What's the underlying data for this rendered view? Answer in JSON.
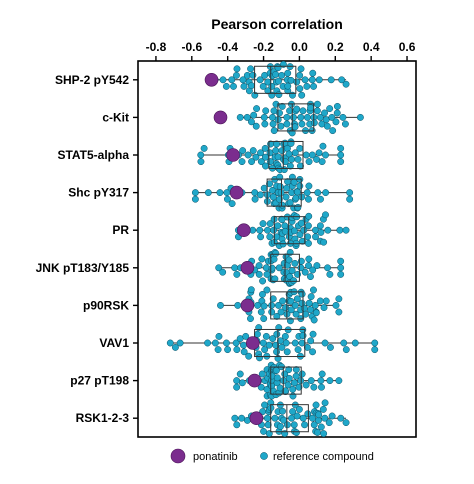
{
  "chart_data": {
    "type": "scatter",
    "subtype": "beeswarm-with-boxplot",
    "title": "",
    "xlabel": "Pearson correlation",
    "xlabel_position": "top",
    "xlim": [
      -0.9,
      0.65
    ],
    "xticks": [
      -0.8,
      -0.6,
      -0.4,
      -0.2,
      0.0,
      0.2,
      0.4,
      0.6
    ],
    "xtick_labels": [
      "-0.8",
      "-0.6",
      "-0.4",
      "-0.2",
      "0.0",
      "0.2",
      "0.4",
      "0.6"
    ],
    "grid": false,
    "legend_position": "bottom",
    "categories": [
      "SHP-2 pY542",
      "c-Kit",
      "STAT5-alpha",
      "Shc pY317",
      "PR",
      "JNK pT183/Y185",
      "p90RSK",
      "VAV1",
      "p27 pT198",
      "RSK1-2-3"
    ],
    "series": [
      {
        "name": "ponatinib",
        "color": "#7b2d8e",
        "values": [
          -0.49,
          -0.44,
          -0.37,
          -0.35,
          -0.31,
          -0.29,
          -0.29,
          -0.26,
          -0.25,
          -0.24
        ]
      },
      {
        "name": "reference compound",
        "color": "#1fa7c9",
        "summary": "box plot over 58 reference compounds per row",
        "boxes": [
          {
            "whisker_low": -0.47,
            "q1": -0.25,
            "median": -0.16,
            "q3": -0.02,
            "whisker_high": 0.26
          },
          {
            "whisker_low": -0.33,
            "q1": -0.12,
            "median": -0.04,
            "q3": 0.08,
            "whisker_high": 0.34
          },
          {
            "whisker_low": -0.55,
            "q1": -0.17,
            "median": -0.09,
            "q3": 0.02,
            "whisker_high": 0.23
          },
          {
            "whisker_low": -0.58,
            "q1": -0.18,
            "median": -0.1,
            "q3": 0.01,
            "whisker_high": 0.28
          },
          {
            "whisker_low": -0.34,
            "q1": -0.14,
            "median": -0.06,
            "q3": 0.03,
            "whisker_high": 0.26
          },
          {
            "whisker_low": -0.45,
            "q1": -0.16,
            "median": -0.08,
            "q3": 0.0,
            "whisker_high": 0.23
          },
          {
            "whisker_low": -0.44,
            "q1": -0.16,
            "median": -0.07,
            "q3": 0.02,
            "whisker_high": 0.22
          },
          {
            "whisker_low": -0.72,
            "q1": -0.25,
            "median": -0.12,
            "q3": 0.03,
            "whisker_high": 0.42
          },
          {
            "whisker_low": -0.35,
            "q1": -0.16,
            "median": -0.09,
            "q3": 0.01,
            "whisker_high": 0.22
          },
          {
            "whisker_low": -0.36,
            "q1": -0.16,
            "median": -0.07,
            "q3": 0.05,
            "whisker_high": 0.26
          }
        ]
      }
    ]
  },
  "legend": {
    "items": [
      {
        "label": "ponatinib",
        "color": "#7b2d8e"
      },
      {
        "label": "reference compound",
        "color": "#1fa7c9"
      }
    ]
  }
}
